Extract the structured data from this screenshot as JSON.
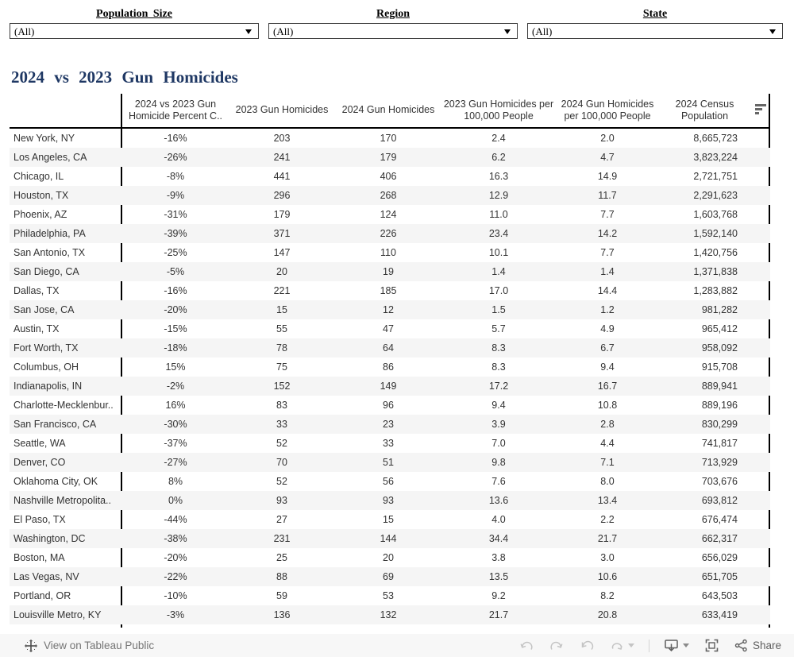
{
  "filters": [
    {
      "label": "Population Size",
      "value": "(All)"
    },
    {
      "label": "Region",
      "value": "(All)"
    },
    {
      "label": "State",
      "value": "(All)"
    }
  ],
  "title": "2024 vs 2023 Gun Homicides",
  "table": {
    "columns": [
      "",
      "2024 vs 2023 Gun Homicide Percent C..",
      "2023 Gun Homicides",
      "2024 Gun Homicides",
      "2023 Gun Homicides per 100,000 People",
      "2024 Gun Homicides per 100,000 People",
      "2024 Census Population"
    ],
    "rows": [
      [
        "New York, NY",
        "-16%",
        "203",
        "170",
        "2.4",
        "2.0",
        "8,665,723"
      ],
      [
        "Los Angeles, CA",
        "-26%",
        "241",
        "179",
        "6.2",
        "4.7",
        "3,823,224"
      ],
      [
        "Chicago, IL",
        "-8%",
        "441",
        "406",
        "16.3",
        "14.9",
        "2,721,751"
      ],
      [
        "Houston, TX",
        "-9%",
        "296",
        "268",
        "12.9",
        "11.7",
        "2,291,623"
      ],
      [
        "Phoenix, AZ",
        "-31%",
        "179",
        "124",
        "11.0",
        "7.7",
        "1,603,768"
      ],
      [
        "Philadelphia, PA",
        "-39%",
        "371",
        "226",
        "23.4",
        "14.2",
        "1,592,140"
      ],
      [
        "San Antonio, TX",
        "-25%",
        "147",
        "110",
        "10.1",
        "7.7",
        "1,420,756"
      ],
      [
        "San Diego, CA",
        "-5%",
        "20",
        "19",
        "1.4",
        "1.4",
        "1,371,838"
      ],
      [
        "Dallas, TX",
        "-16%",
        "221",
        "185",
        "17.0",
        "14.4",
        "1,283,882"
      ],
      [
        "San Jose, CA",
        "-20%",
        "15",
        "12",
        "1.5",
        "1.2",
        "981,282"
      ],
      [
        "Austin, TX",
        "-15%",
        "55",
        "47",
        "5.7",
        "4.9",
        "965,412"
      ],
      [
        "Fort Worth, TX",
        "-18%",
        "78",
        "64",
        "8.3",
        "6.7",
        "958,092"
      ],
      [
        "Columbus, OH",
        "15%",
        "75",
        "86",
        "8.3",
        "9.4",
        "915,708"
      ],
      [
        "Indianapolis, IN",
        "-2%",
        "152",
        "149",
        "17.2",
        "16.7",
        "889,941"
      ],
      [
        "Charlotte-Mecklenbur..",
        "16%",
        "83",
        "96",
        "9.4",
        "10.8",
        "889,196"
      ],
      [
        "San Francisco, CA",
        "-30%",
        "33",
        "23",
        "3.9",
        "2.8",
        "830,299"
      ],
      [
        "Seattle, WA",
        "-37%",
        "52",
        "33",
        "7.0",
        "4.4",
        "741,817"
      ],
      [
        "Denver, CO",
        "-27%",
        "70",
        "51",
        "9.8",
        "7.1",
        "713,929"
      ],
      [
        "Oklahoma City, OK",
        "8%",
        "52",
        "56",
        "7.6",
        "8.0",
        "703,676"
      ],
      [
        "Nashville Metropolita..",
        "0%",
        "93",
        "93",
        "13.6",
        "13.4",
        "693,812"
      ],
      [
        "El Paso, TX",
        "-44%",
        "27",
        "15",
        "4.0",
        "2.2",
        "676,474"
      ],
      [
        "Washington, DC",
        "-38%",
        "231",
        "144",
        "34.4",
        "21.7",
        "662,317"
      ],
      [
        "Boston, MA",
        "-20%",
        "25",
        "20",
        "3.8",
        "3.0",
        "656,029"
      ],
      [
        "Las Vegas, NV",
        "-22%",
        "88",
        "69",
        "13.5",
        "10.6",
        "651,705"
      ],
      [
        "Portland, OR",
        "-10%",
        "59",
        "53",
        "9.2",
        "8.2",
        "643,503"
      ],
      [
        "Louisville Metro, KY",
        "-3%",
        "136",
        "132",
        "21.7",
        "20.8",
        "633,419"
      ]
    ]
  },
  "footer": {
    "view_label": "View on Tableau Public",
    "share_label": "Share"
  },
  "colors": {
    "title_navy": "#1f3864",
    "row_band": "#f5f5f5",
    "footer_bg": "#f7f7f7",
    "text": "#333333",
    "disabled_icon": "#c4c4c4",
    "active_icon": "#5f5f5f"
  }
}
